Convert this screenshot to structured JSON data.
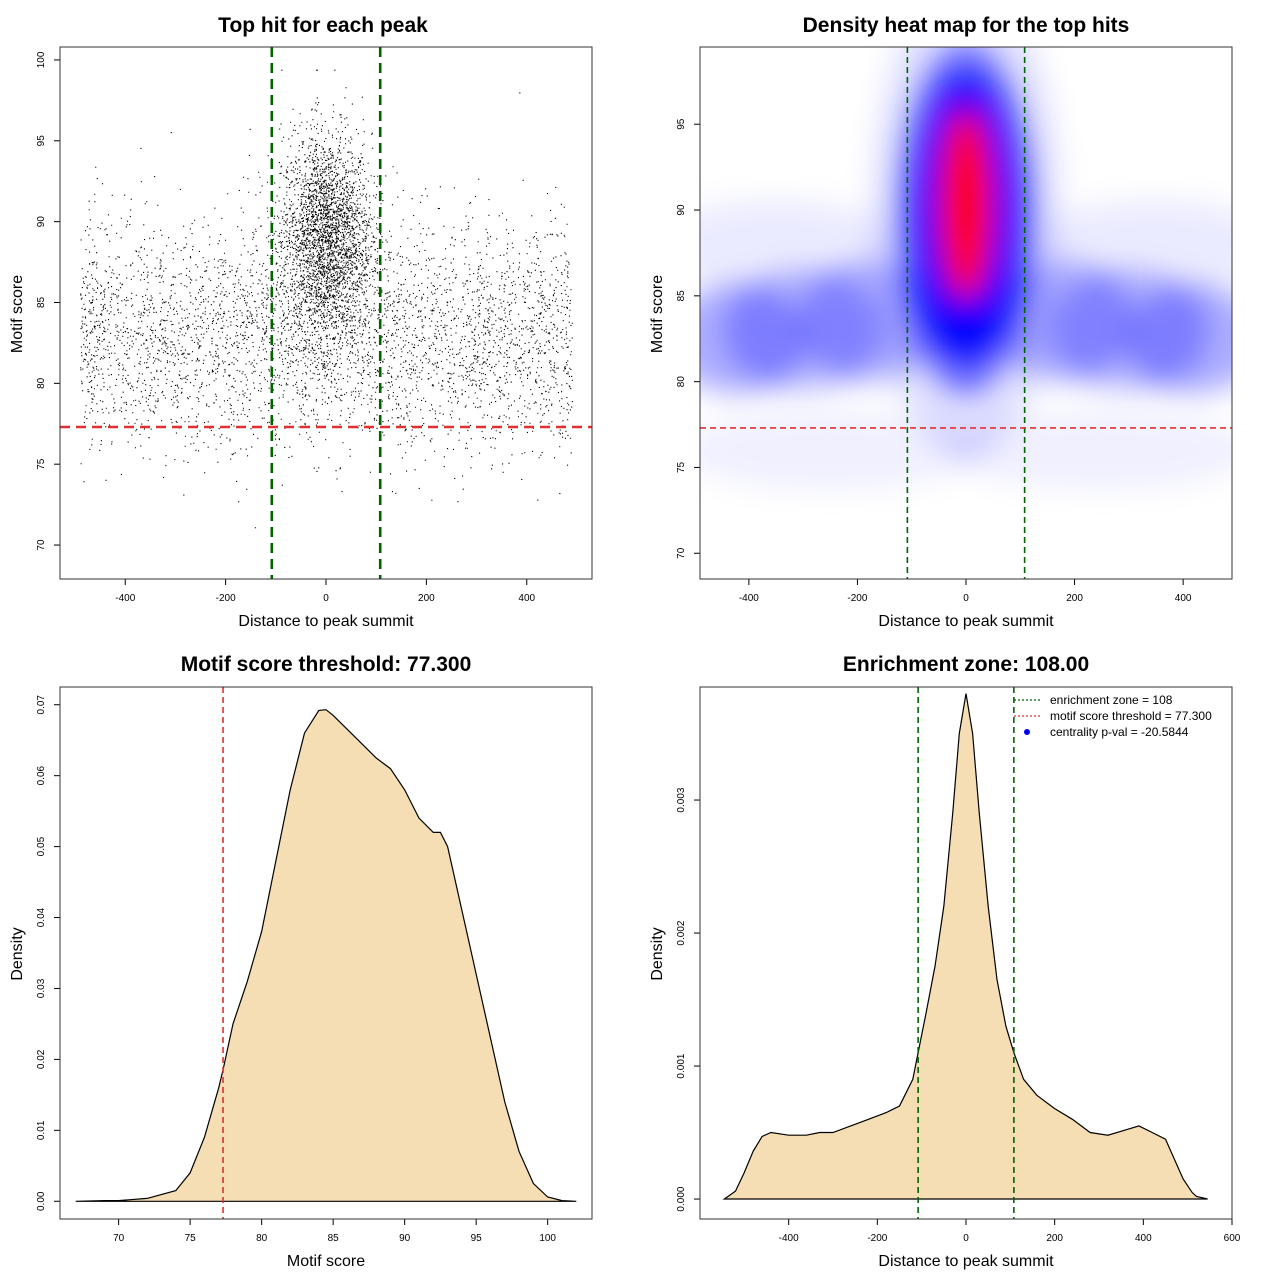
{
  "chart_data": [
    {
      "type": "scatter",
      "title": "Top hit for each peak",
      "xlabel": "Distance to peak summit",
      "ylabel": "Motif score",
      "xlim": [
        -530,
        530
      ],
      "ylim": [
        67.9,
        100.8
      ],
      "xticks": [
        -400,
        -200,
        0,
        200,
        400
      ],
      "yticks": [
        70,
        75,
        80,
        85,
        90,
        95,
        100
      ],
      "point_count": 7000,
      "point_color": "#000000",
      "reference_lines": [
        {
          "orientation": "vertical",
          "value": -108,
          "color": "#006400",
          "style": "dashed"
        },
        {
          "orientation": "vertical",
          "value": 108,
          "color": "#006400",
          "style": "dashed"
        },
        {
          "orientation": "horizontal",
          "value": 77.3,
          "color": "#e03030",
          "style": "dashed"
        }
      ],
      "distribution": {
        "background": {
          "x_range": [
            -490,
            490
          ],
          "y_mean": 83,
          "y_sd": 3.5
        },
        "central": {
          "x_mean": 0,
          "x_sd": 45,
          "y_mean": 89,
          "y_sd": 3.2
        }
      }
    },
    {
      "type": "heatmap",
      "title": "Density heat map for the top hits",
      "xlabel": "Distance to peak summit",
      "ylabel": "Motif score",
      "xlim": [
        -490,
        490
      ],
      "ylim": [
        68.5,
        99.5
      ],
      "xticks": [
        -400,
        -200,
        0,
        200,
        400
      ],
      "yticks": [
        70,
        75,
        80,
        85,
        90,
        95
      ],
      "colors": [
        "#ffffff",
        "#0000ff",
        "#ff0000"
      ],
      "reference_lines": [
        {
          "orientation": "vertical",
          "value": -108,
          "color": "#006400",
          "style": "dashed"
        },
        {
          "orientation": "vertical",
          "value": 108,
          "color": "#006400",
          "style": "dashed"
        },
        {
          "orientation": "horizontal",
          "value": 77.3,
          "color": "#e03030",
          "style": "dashed"
        }
      ]
    },
    {
      "type": "area",
      "title": "Motif score threshold: 77.300",
      "xlabel": "Motif score",
      "ylabel": "Density",
      "xlim": [
        65.9,
        103.1
      ],
      "ylim": [
        -0.0025,
        0.0725
      ],
      "xticks": [
        70,
        75,
        80,
        85,
        90,
        95,
        100
      ],
      "yticks": [
        0.0,
        0.01,
        0.02,
        0.03,
        0.04,
        0.05,
        0.06,
        0.07
      ],
      "ytick_labels": [
        "0.00",
        "0.01",
        "0.02",
        "0.03",
        "0.04",
        "0.05",
        "0.06",
        "0.07"
      ],
      "fill": "#f5deb3",
      "x": [
        67,
        69,
        70,
        72,
        74,
        75,
        76,
        77,
        77.3,
        78,
        79,
        80,
        81,
        82,
        83,
        84,
        84.5,
        85,
        86,
        87,
        88,
        89,
        90,
        91,
        92,
        92.5,
        93,
        94,
        95,
        96,
        97,
        98,
        99,
        100,
        101,
        102
      ],
      "y": [
        0,
        0.0001,
        0.0001,
        0.0004,
        0.0015,
        0.004,
        0.009,
        0.016,
        0.0185,
        0.025,
        0.031,
        0.038,
        0.048,
        0.058,
        0.066,
        0.0692,
        0.0693,
        0.0685,
        0.0665,
        0.0645,
        0.0625,
        0.061,
        0.058,
        0.054,
        0.052,
        0.052,
        0.05,
        0.041,
        0.032,
        0.023,
        0.014,
        0.007,
        0.0025,
        0.0006,
        0.0001,
        0
      ],
      "reference_lines": [
        {
          "orientation": "vertical",
          "value": 77.3,
          "color": "#e03030",
          "style": "dashed"
        }
      ]
    },
    {
      "type": "area",
      "title": "Enrichment zone: 108.00",
      "xlabel": "Distance to peak summit",
      "ylabel": "Density",
      "xlim": [
        -600,
        600
      ],
      "ylim": [
        -0.00015,
        0.00385
      ],
      "xticks": [
        -400,
        -200,
        0,
        200,
        400,
        600
      ],
      "yticks": [
        0.0,
        0.001,
        0.002,
        0.003
      ],
      "ytick_labels": [
        "0.000",
        "0.001",
        "0.002",
        "0.003"
      ],
      "fill": "#f5deb3",
      "x": [
        -545,
        -520,
        -500,
        -480,
        -460,
        -440,
        -400,
        -360,
        -330,
        -300,
        -260,
        -220,
        -180,
        -150,
        -120,
        -108,
        -90,
        -70,
        -50,
        -30,
        -15,
        0,
        15,
        30,
        50,
        70,
        90,
        108,
        130,
        160,
        200,
        240,
        280,
        320,
        360,
        390,
        420,
        450,
        470,
        490,
        510,
        520,
        545
      ],
      "y": [
        0,
        6e-05,
        0.0002,
        0.00036,
        0.00047,
        0.0005,
        0.00048,
        0.00048,
        0.0005,
        0.0005,
        0.00055,
        0.0006,
        0.00065,
        0.0007,
        0.0009,
        0.0011,
        0.0014,
        0.00175,
        0.0022,
        0.0029,
        0.0035,
        0.0038,
        0.0035,
        0.0029,
        0.0022,
        0.00165,
        0.0013,
        0.0011,
        0.0009,
        0.00078,
        0.00068,
        0.0006,
        0.0005,
        0.00048,
        0.00052,
        0.00055,
        0.0005,
        0.00045,
        0.0003,
        0.00015,
        5e-05,
        2e-05,
        0
      ],
      "reference_lines": [
        {
          "orientation": "vertical",
          "value": -108,
          "color": "#006400",
          "style": "dashed"
        },
        {
          "orientation": "vertical",
          "value": 108,
          "color": "#006400",
          "style": "dashed"
        }
      ],
      "legend": {
        "placement": "top-right",
        "entries": [
          {
            "label": "enrichment zone = 108",
            "color": "#006400",
            "symbol": "dotted-line"
          },
          {
            "label": "motif score threshold = 77.300",
            "color": "#e03030",
            "symbol": "dotted-line"
          },
          {
            "label": "centrality p-val = -20.5844",
            "color": "#0000ff",
            "symbol": "dot"
          }
        ]
      }
    }
  ]
}
